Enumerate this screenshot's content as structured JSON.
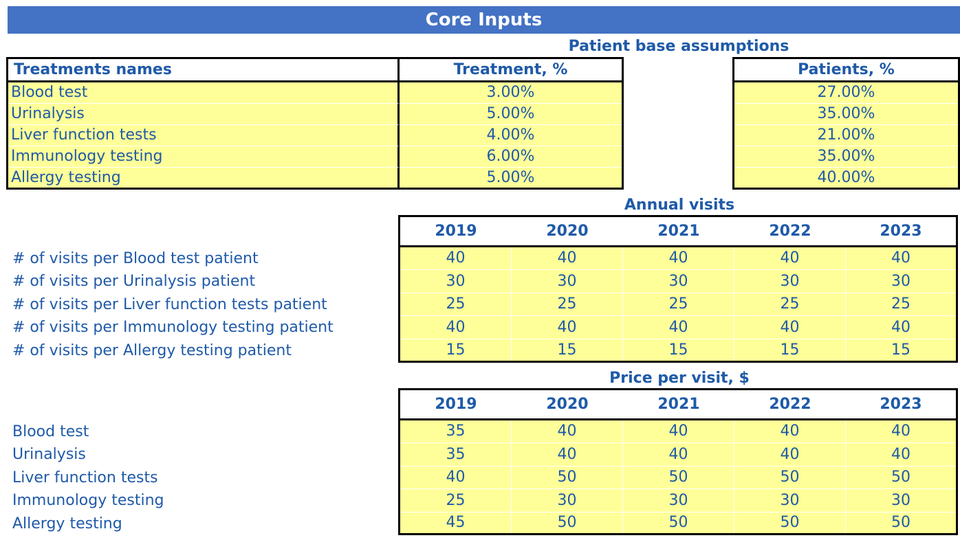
{
  "title": "Core Inputs",
  "patient_base": {
    "title": "Patient base assumptions",
    "headers": {
      "name": "Treatments names",
      "treatment": "Treatment, %",
      "patients": "Patients, %"
    },
    "rows": [
      {
        "name": "Blood test",
        "treatment": "3.00%",
        "patients": "27.00%"
      },
      {
        "name": "Urinalysis",
        "treatment": "5.00%",
        "patients": "35.00%"
      },
      {
        "name": "Liver function tests",
        "treatment": "4.00%",
        "patients": "21.00%"
      },
      {
        "name": "Immunology testing",
        "treatment": "6.00%",
        "patients": "35.00%"
      },
      {
        "name": "Allergy testing",
        "treatment": "5.00%",
        "patients": "40.00%"
      }
    ]
  },
  "annual_visits": {
    "title": "Annual visits",
    "years": [
      "2019",
      "2020",
      "2021",
      "2022",
      "2023"
    ],
    "rows": [
      {
        "label": "# of visits per Blood test patient",
        "values": [
          "40",
          "40",
          "40",
          "40",
          "40"
        ]
      },
      {
        "label": "# of visits per Urinalysis patient",
        "values": [
          "30",
          "30",
          "30",
          "30",
          "30"
        ]
      },
      {
        "label": "# of visits per Liver function tests patient",
        "values": [
          "25",
          "25",
          "25",
          "25",
          "25"
        ]
      },
      {
        "label": "# of visits per Immunology testing patient",
        "values": [
          "40",
          "40",
          "40",
          "40",
          "40"
        ]
      },
      {
        "label": "# of visits per Allergy testing patient",
        "values": [
          "15",
          "15",
          "15",
          "15",
          "15"
        ]
      }
    ]
  },
  "price_per_visit": {
    "title": "Price per visit, $",
    "years": [
      "2019",
      "2020",
      "2021",
      "2022",
      "2023"
    ],
    "rows": [
      {
        "label": "Blood test",
        "values": [
          "35",
          "40",
          "40",
          "40",
          "40"
        ]
      },
      {
        "label": "Urinalysis",
        "values": [
          "35",
          "40",
          "40",
          "40",
          "40"
        ]
      },
      {
        "label": "Liver function tests",
        "values": [
          "40",
          "50",
          "50",
          "50",
          "50"
        ]
      },
      {
        "label": "Immunology testing",
        "values": [
          "25",
          "30",
          "30",
          "30",
          "30"
        ]
      },
      {
        "label": "Allergy testing",
        "values": [
          "45",
          "50",
          "50",
          "50",
          "50"
        ]
      }
    ]
  }
}
